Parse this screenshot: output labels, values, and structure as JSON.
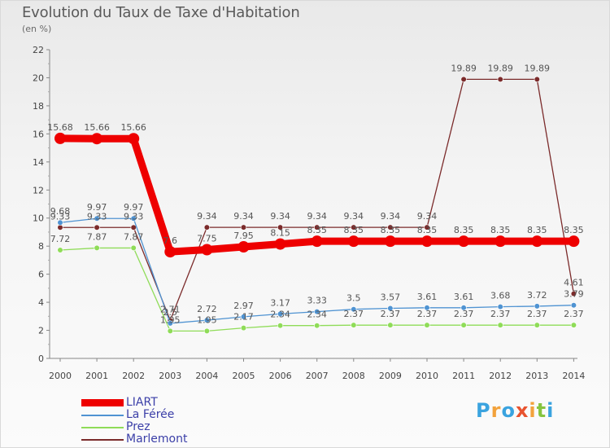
{
  "title": "Evolution du Taux de Taxe d'Habitation",
  "subtitle": "(en %)",
  "logo": {
    "letters": [
      "P",
      "r",
      "o",
      "x",
      "i",
      "t",
      "i"
    ],
    "colors": [
      "#3aa3df",
      "#f2a23c",
      "#3aa3df",
      "#e8532f",
      "#f2a23c",
      "#86c440",
      "#3aa3df"
    ]
  },
  "chart_data": {
    "type": "line",
    "x": [
      "2000",
      "2001",
      "2002",
      "2003",
      "2004",
      "2005",
      "2006",
      "2007",
      "2008",
      "2009",
      "2010",
      "2011",
      "2012",
      "2013",
      "2014"
    ],
    "yticks": [
      "0",
      "2",
      "4",
      "6",
      "8",
      "10",
      "12",
      "14",
      "16",
      "18",
      "20",
      "22"
    ],
    "ylim": [
      0,
      22
    ],
    "grid": false,
    "legend_position": "bottom-left",
    "series": [
      {
        "name": "LIART",
        "color": "#ee0000",
        "values": [
          15.68,
          15.66,
          15.66,
          7.6,
          7.75,
          7.95,
          8.15,
          8.35,
          8.35,
          8.35,
          8.35,
          8.35,
          8.35,
          8.35,
          8.35
        ],
        "labels": [
          "15.68",
          "15.66",
          "15.66",
          "7.6",
          "7.75",
          "7.95",
          "8.15",
          "8.35",
          "8.35",
          "8.35",
          "8.35",
          "8.35",
          "8.35",
          "8.35",
          "8.35"
        ]
      },
      {
        "name": "La Férée",
        "color": "#4f93d2",
        "values": [
          9.68,
          9.97,
          9.97,
          2.5,
          2.72,
          2.97,
          3.17,
          3.33,
          3.5,
          3.57,
          3.61,
          3.61,
          3.68,
          3.72,
          3.79
        ],
        "labels": [
          "9.68",
          "9.97",
          "9.97",
          "2.5",
          "2.72",
          "2.97",
          "3.17",
          "3.33",
          "3.5",
          "3.57",
          "3.61",
          "3.61",
          "3.68",
          "3.72",
          "3.79"
        ]
      },
      {
        "name": "Prez",
        "color": "#8fdc58",
        "values": [
          7.72,
          7.87,
          7.87,
          1.95,
          1.95,
          2.17,
          2.34,
          2.34,
          2.37,
          2.37,
          2.37,
          2.37,
          2.37,
          2.37,
          2.37
        ],
        "labels": [
          "7.72",
          "7.87",
          "7.87",
          "1.95",
          "1.95",
          "2.17",
          "2.34",
          "2.34",
          "2.37",
          "2.37",
          "2.37",
          "2.37",
          "2.37",
          "2.37",
          "2.37"
        ]
      },
      {
        "name": "Marlemont",
        "color": "#7b2b2b",
        "values": [
          9.33,
          9.33,
          9.33,
          2.71,
          9.34,
          9.34,
          9.34,
          9.34,
          9.34,
          9.34,
          9.34,
          19.89,
          19.89,
          19.89,
          4.61
        ],
        "labels": [
          "9.33",
          "9.33",
          "9.33",
          "2.71",
          "9.34",
          "9.34",
          "9.34",
          "9.34",
          "9.34",
          "9.34",
          "9.34",
          "19.89",
          "19.89",
          "19.89",
          "4.61"
        ]
      }
    ]
  }
}
